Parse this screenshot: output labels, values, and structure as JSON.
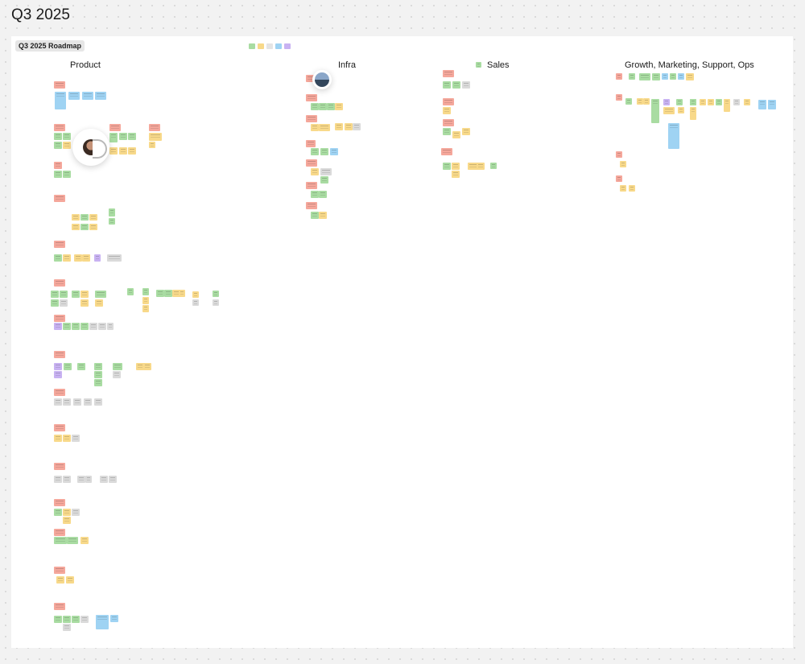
{
  "page": {
    "title": "Q3 2025"
  },
  "frame": {
    "label": "Q3 2025 Roadmap"
  },
  "sections": {
    "product": "Product",
    "infra": "Infra",
    "sales": "Sales",
    "growth": "Growth, Marketing, Support, Ops"
  },
  "colors": {
    "red": "#f5a79b",
    "green": "#a9dca2",
    "yellow": "#f8d98a",
    "blue": "#9fd3f3",
    "purple": "#c8b2f2",
    "gray": "#dadada"
  }
}
